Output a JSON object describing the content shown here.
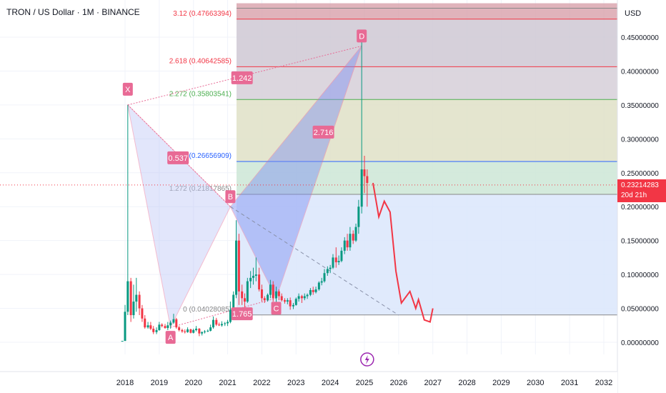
{
  "header": {
    "title": "TRON / US Dollar · 1M · BINANCE",
    "currency": "USD"
  },
  "last_price": {
    "value": "0.23214283",
    "countdown": "20d 21h"
  },
  "colors": {
    "up": "#089981",
    "down": "#f23645",
    "pattern_fill": "#bfc8f7",
    "fib_blue": "#2962ff",
    "pattern_label": "#e86a95"
  },
  "chart_data": {
    "type": "candlestick",
    "title": "TRON / US Dollar · 1M · BINANCE",
    "ylim": [
      -0.02,
      0.5
    ],
    "xlim": [
      2017.6,
      2032.3
    ],
    "x_ticks": [
      2018,
      2019,
      2020,
      2021,
      2022,
      2023,
      2024,
      2025,
      2026,
      2027,
      2028,
      2029,
      2030,
      2031,
      2032
    ],
    "y_ticks": [
      {
        "v": 0.45,
        "label": "0.45000000"
      },
      {
        "v": 0.4,
        "label": "0.40000000"
      },
      {
        "v": 0.35,
        "label": "0.35000000"
      },
      {
        "v": 0.3,
        "label": "0.30000000"
      },
      {
        "v": 0.25,
        "label": "0.25000000"
      },
      {
        "v": 0.2,
        "label": "0.20000000"
      },
      {
        "v": 0.15,
        "label": "0.15000000"
      },
      {
        "v": 0.1,
        "label": "0.10000000"
      },
      {
        "v": 0.05,
        "label": "0.05000000"
      },
      {
        "v": 0.0,
        "label": "0.00000000"
      }
    ],
    "candles": [
      [
        2017.92,
        0.002,
        0.002,
        0.002,
        0.002
      ],
      [
        2018.0,
        0.002,
        0.055,
        0.002,
        0.045
      ],
      [
        2018.08,
        0.045,
        0.35,
        0.04,
        0.09
      ],
      [
        2018.17,
        0.09,
        0.095,
        0.03,
        0.04
      ],
      [
        2018.25,
        0.04,
        0.085,
        0.035,
        0.06
      ],
      [
        2018.33,
        0.06,
        0.095,
        0.045,
        0.07
      ],
      [
        2018.42,
        0.07,
        0.075,
        0.04,
        0.05
      ],
      [
        2018.5,
        0.05,
        0.055,
        0.03,
        0.035
      ],
      [
        2018.58,
        0.035,
        0.04,
        0.02,
        0.022
      ],
      [
        2018.67,
        0.022,
        0.03,
        0.02,
        0.025
      ],
      [
        2018.75,
        0.025,
        0.03,
        0.018,
        0.02
      ],
      [
        2018.83,
        0.02,
        0.024,
        0.012,
        0.015
      ],
      [
        2018.92,
        0.015,
        0.022,
        0.012,
        0.018
      ],
      [
        2019.0,
        0.018,
        0.03,
        0.017,
        0.026
      ],
      [
        2019.08,
        0.026,
        0.028,
        0.022,
        0.024
      ],
      [
        2019.17,
        0.024,
        0.027,
        0.02,
        0.021
      ],
      [
        2019.25,
        0.021,
        0.03,
        0.018,
        0.025
      ],
      [
        2019.33,
        0.025,
        0.032,
        0.02,
        0.029
      ],
      [
        2019.42,
        0.029,
        0.042,
        0.027,
        0.034
      ],
      [
        2019.5,
        0.034,
        0.036,
        0.02,
        0.022
      ],
      [
        2019.58,
        0.022,
        0.024,
        0.016,
        0.018
      ],
      [
        2019.67,
        0.018,
        0.02,
        0.014,
        0.016
      ],
      [
        2019.75,
        0.016,
        0.019,
        0.013,
        0.015
      ],
      [
        2019.83,
        0.015,
        0.022,
        0.014,
        0.019
      ],
      [
        2019.92,
        0.019,
        0.02,
        0.013,
        0.014
      ],
      [
        2020.0,
        0.014,
        0.02,
        0.013,
        0.018
      ],
      [
        2020.08,
        0.018,
        0.024,
        0.016,
        0.02
      ],
      [
        2020.17,
        0.02,
        0.021,
        0.009,
        0.013
      ],
      [
        2020.25,
        0.013,
        0.016,
        0.01,
        0.015
      ],
      [
        2020.33,
        0.015,
        0.018,
        0.013,
        0.016
      ],
      [
        2020.42,
        0.016,
        0.019,
        0.015,
        0.017
      ],
      [
        2020.5,
        0.017,
        0.026,
        0.016,
        0.022
      ],
      [
        2020.58,
        0.022,
        0.038,
        0.02,
        0.033
      ],
      [
        2020.67,
        0.033,
        0.036,
        0.024,
        0.026
      ],
      [
        2020.75,
        0.026,
        0.029,
        0.024,
        0.025
      ],
      [
        2020.83,
        0.025,
        0.031,
        0.023,
        0.027
      ],
      [
        2020.92,
        0.027,
        0.03,
        0.024,
        0.028
      ],
      [
        2021.0,
        0.028,
        0.033,
        0.024,
        0.03
      ],
      [
        2021.08,
        0.03,
        0.06,
        0.028,
        0.048
      ],
      [
        2021.17,
        0.048,
        0.075,
        0.045,
        0.07
      ],
      [
        2021.25,
        0.07,
        0.18,
        0.065,
        0.15
      ],
      [
        2021.33,
        0.15,
        0.16,
        0.055,
        0.075
      ],
      [
        2021.42,
        0.075,
        0.085,
        0.055,
        0.065
      ],
      [
        2021.5,
        0.065,
        0.072,
        0.05,
        0.06
      ],
      [
        2021.58,
        0.06,
        0.095,
        0.058,
        0.09
      ],
      [
        2021.67,
        0.09,
        0.105,
        0.08,
        0.095
      ],
      [
        2021.75,
        0.095,
        0.11,
        0.085,
        0.098
      ],
      [
        2021.83,
        0.098,
        0.125,
        0.09,
        0.1
      ],
      [
        2021.92,
        0.1,
        0.11,
        0.075,
        0.078
      ],
      [
        2022.0,
        0.078,
        0.085,
        0.06,
        0.065
      ],
      [
        2022.08,
        0.065,
        0.068,
        0.058,
        0.062
      ],
      [
        2022.17,
        0.062,
        0.072,
        0.06,
        0.07
      ],
      [
        2022.25,
        0.07,
        0.092,
        0.065,
        0.085
      ],
      [
        2022.33,
        0.085,
        0.09,
        0.06,
        0.065
      ],
      [
        2022.42,
        0.065,
        0.082,
        0.055,
        0.075
      ],
      [
        2022.5,
        0.075,
        0.078,
        0.062,
        0.068
      ],
      [
        2022.58,
        0.068,
        0.072,
        0.06,
        0.062
      ],
      [
        2022.67,
        0.062,
        0.065,
        0.057,
        0.06
      ],
      [
        2022.75,
        0.06,
        0.065,
        0.056,
        0.062
      ],
      [
        2022.83,
        0.062,
        0.066,
        0.048,
        0.053
      ],
      [
        2022.92,
        0.053,
        0.058,
        0.049,
        0.055
      ],
      [
        2023.0,
        0.055,
        0.066,
        0.054,
        0.064
      ],
      [
        2023.08,
        0.064,
        0.072,
        0.06,
        0.068
      ],
      [
        2023.17,
        0.068,
        0.07,
        0.058,
        0.065
      ],
      [
        2023.25,
        0.065,
        0.072,
        0.062,
        0.068
      ],
      [
        2023.33,
        0.068,
        0.072,
        0.064,
        0.07
      ],
      [
        2023.42,
        0.07,
        0.08,
        0.068,
        0.077
      ],
      [
        2023.5,
        0.077,
        0.082,
        0.07,
        0.074
      ],
      [
        2023.58,
        0.074,
        0.082,
        0.072,
        0.078
      ],
      [
        2023.67,
        0.078,
        0.09,
        0.076,
        0.088
      ],
      [
        2023.75,
        0.088,
        0.095,
        0.084,
        0.09
      ],
      [
        2023.83,
        0.09,
        0.108,
        0.088,
        0.102
      ],
      [
        2023.92,
        0.102,
        0.112,
        0.098,
        0.108
      ],
      [
        2024.0,
        0.108,
        0.114,
        0.102,
        0.11
      ],
      [
        2024.08,
        0.11,
        0.13,
        0.108,
        0.125
      ],
      [
        2024.17,
        0.125,
        0.14,
        0.11,
        0.118
      ],
      [
        2024.25,
        0.118,
        0.128,
        0.114,
        0.12
      ],
      [
        2024.33,
        0.12,
        0.14,
        0.118,
        0.135
      ],
      [
        2024.42,
        0.135,
        0.155,
        0.13,
        0.15
      ],
      [
        2024.5,
        0.15,
        0.16,
        0.135,
        0.14
      ],
      [
        2024.58,
        0.14,
        0.17,
        0.135,
        0.16
      ],
      [
        2024.67,
        0.16,
        0.165,
        0.145,
        0.15
      ],
      [
        2024.75,
        0.15,
        0.175,
        0.148,
        0.17
      ],
      [
        2024.83,
        0.17,
        0.21,
        0.16,
        0.2
      ],
      [
        2024.92,
        0.2,
        0.445,
        0.19,
        0.255
      ],
      [
        2025.0,
        0.255,
        0.275,
        0.22,
        0.245
      ],
      [
        2025.08,
        0.245,
        0.255,
        0.2,
        0.235
      ]
    ],
    "pattern": {
      "points": [
        {
          "label": "X",
          "x": 2018.08,
          "y": 0.35
        },
        {
          "label": "A",
          "x": 2019.33,
          "y": 0.022
        },
        {
          "label": "B",
          "x": 2021.08,
          "y": 0.2
        },
        {
          "label": "C",
          "x": 2022.42,
          "y": 0.065
        },
        {
          "label": "D",
          "x": 2024.92,
          "y": 0.437
        }
      ],
      "ratios": [
        {
          "label": "0.537",
          "x": 2019.55,
          "y": 0.272
        },
        {
          "label": "1.765",
          "x": 2021.42,
          "y": 0.042
        },
        {
          "label": "2.716",
          "x": 2023.8,
          "y": 0.31
        },
        {
          "label": "1.242",
          "x": 2021.42,
          "y": 0.39
        }
      ]
    },
    "fib_levels": [
      {
        "label": "3.12 (0.47663394)",
        "value": 0.4766,
        "color": "#f23645"
      },
      {
        "label": "2.618 (0.40642585)",
        "value": 0.4064,
        "color": "#f23645"
      },
      {
        "label": "2.272 (0.35803541)",
        "value": 0.358,
        "color": "#4caf50"
      },
      {
        "label": "(0.26656909)",
        "value": 0.2666,
        "color": "#2962ff"
      },
      {
        "label": "1.272 (0.21817865)",
        "value": 0.2182,
        "color": "#888888"
      },
      {
        "label": "0 (0.04028085)",
        "value": 0.0403,
        "color": "#888888"
      }
    ],
    "projection": [
      [
        2025.25,
        0.235
      ],
      [
        2025.42,
        0.185
      ],
      [
        2025.58,
        0.208
      ],
      [
        2025.75,
        0.192
      ],
      [
        2025.92,
        0.105
      ],
      [
        2026.08,
        0.058
      ],
      [
        2026.33,
        0.075
      ],
      [
        2026.5,
        0.05
      ],
      [
        2026.58,
        0.063
      ],
      [
        2026.75,
        0.033
      ],
      [
        2026.92,
        0.03
      ],
      [
        2027.0,
        0.05
      ]
    ]
  }
}
